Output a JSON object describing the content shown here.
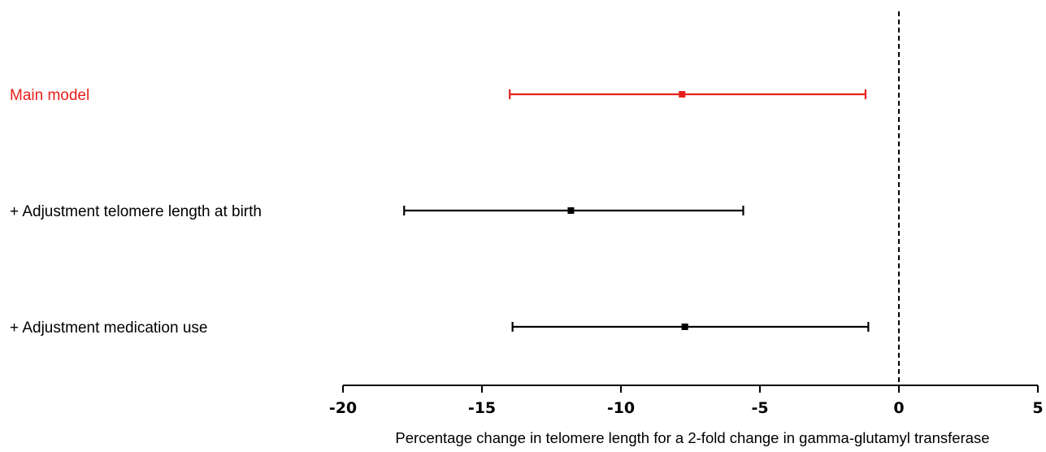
{
  "chart_data": {
    "type": "forest",
    "xlabel": "Percentage change in telomere length  for a 2-fold change in gamma-glutamyl transferase",
    "xlim": [
      -20,
      5
    ],
    "xticks": [
      -20,
      -15,
      -10,
      -5,
      0,
      5
    ],
    "reference_line": 0,
    "grid": false,
    "rows": [
      {
        "label": "Main model",
        "estimate": -7.8,
        "lower": -14.0,
        "upper": -1.2,
        "color": "#e8201c"
      },
      {
        "label": "+  Adjustment telomere length at birth",
        "estimate": -11.8,
        "lower": -17.8,
        "upper": -5.6,
        "color": "#000000"
      },
      {
        "label": "+  Adjustment medication use",
        "estimate": -7.7,
        "lower": -13.9,
        "upper": -1.1,
        "color": "#000000"
      }
    ]
  }
}
